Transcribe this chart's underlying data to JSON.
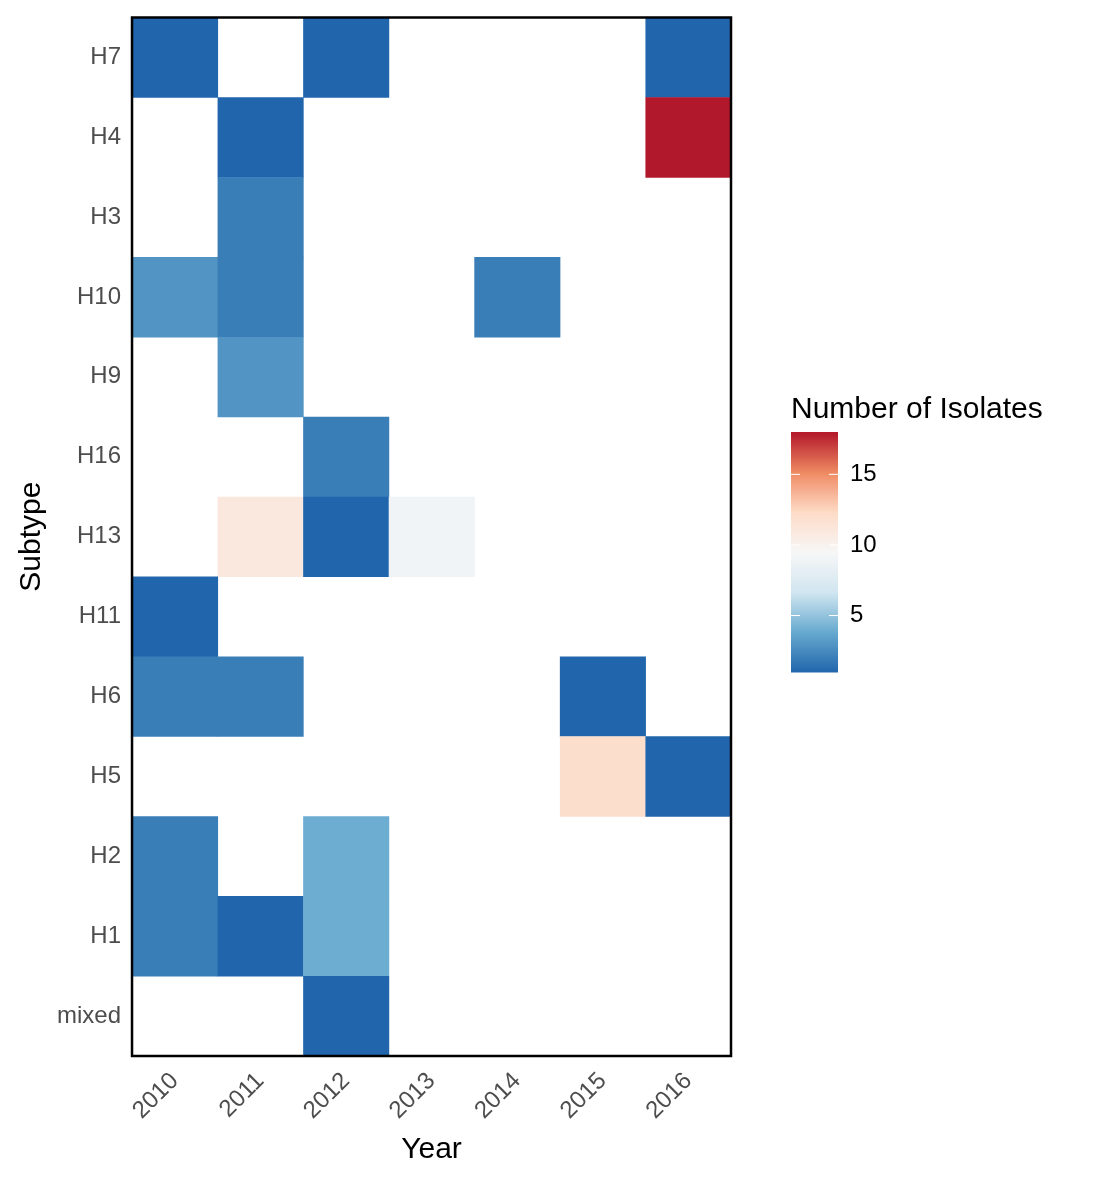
{
  "chart_data": {
    "type": "heatmap",
    "xlabel": "Year",
    "ylabel": "Subtype",
    "clabel": "Number of Isolates",
    "categories": [
      "2010",
      "2011",
      "2012",
      "2013",
      "2014",
      "2015",
      "2016"
    ],
    "y_categories": [
      "H7",
      "H4",
      "H3",
      "H10",
      "H9",
      "H16",
      "H13",
      "H11",
      "H6",
      "H5",
      "H2",
      "H1",
      "mixed"
    ],
    "cells": [
      [
        1,
        null,
        1,
        null,
        null,
        null,
        1
      ],
      [
        null,
        1,
        null,
        null,
        null,
        null,
        18
      ],
      [
        null,
        2,
        null,
        null,
        null,
        null,
        null
      ],
      [
        3,
        2,
        null,
        null,
        2,
        null,
        null
      ],
      [
        null,
        3,
        null,
        null,
        null,
        null,
        null
      ],
      [
        null,
        null,
        2,
        null,
        null,
        null,
        null
      ],
      [
        null,
        11,
        1,
        9,
        null,
        null,
        null
      ],
      [
        1,
        null,
        null,
        null,
        null,
        null,
        null
      ],
      [
        2,
        2,
        null,
        null,
        null,
        1,
        null
      ],
      [
        null,
        null,
        null,
        null,
        null,
        12,
        1
      ],
      [
        2,
        null,
        4,
        null,
        null,
        null,
        null
      ],
      [
        2,
        1,
        4,
        null,
        null,
        null,
        null
      ],
      [
        null,
        null,
        1,
        null,
        null,
        null,
        null
      ]
    ],
    "clim": [
      1,
      18
    ],
    "cticks": [
      5,
      10,
      15
    ],
    "grid": false
  }
}
